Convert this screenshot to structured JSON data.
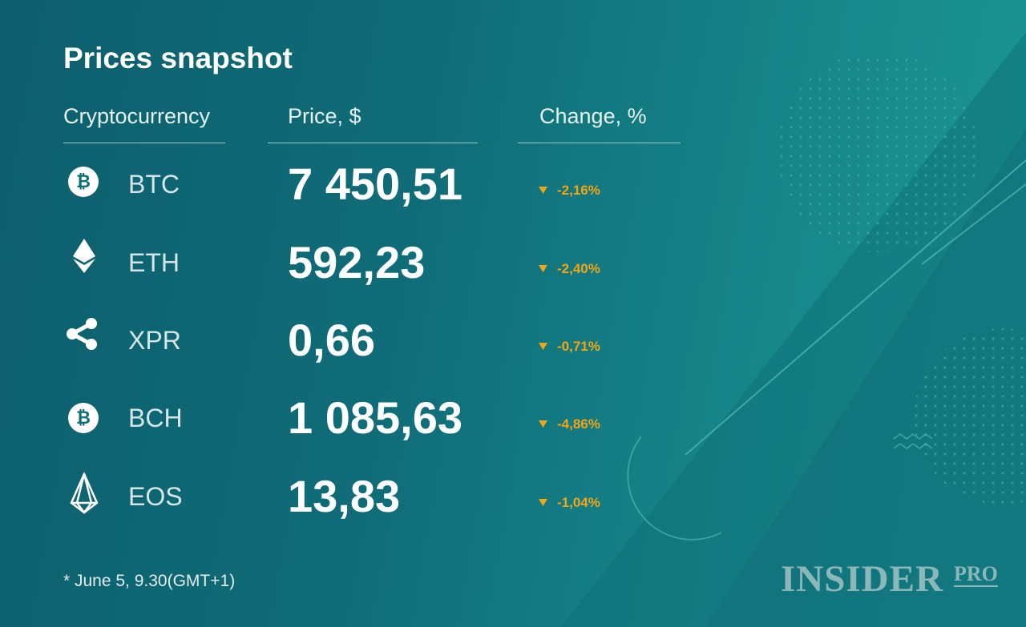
{
  "title": "Prices snapshot",
  "table": {
    "header": [
      "Cryptocurrency",
      "Price, $",
      "Change, %"
    ],
    "rows": [
      [
        "BTC",
        "7 450,51",
        "-2,16%"
      ],
      [
        "ETH",
        "592,23",
        "-2,40%"
      ],
      [
        "XPR",
        "0,66",
        "-0,71%"
      ],
      [
        "BCH",
        "1 085,63",
        "-4,86%"
      ],
      [
        "EOS",
        "13,83",
        "-1,04%"
      ]
    ]
  },
  "footnote": "* June 5, 9.30(GMT+1)",
  "logo": {
    "name": "INSIDER",
    "suffix": "PRO"
  }
}
